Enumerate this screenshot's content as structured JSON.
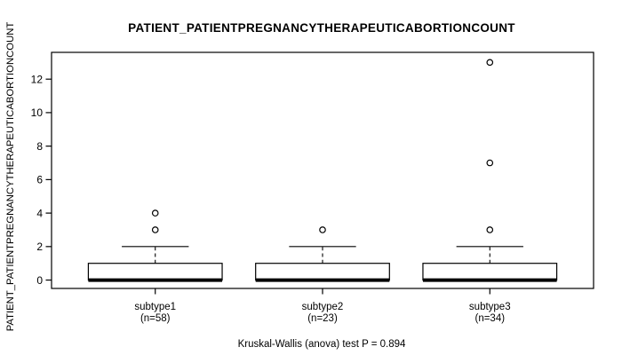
{
  "chart_data": {
    "type": "boxplot",
    "title": "PATIENT_PATIENTPREGNANCYTHERAPEUTICABORTIONCOUNT",
    "ylabel": "PATIENT_PATIENTPREGNANCYTHERAPEUTICABORTIONCOUNT",
    "xlabel": "",
    "ylim": [
      -0.5,
      13.6
    ],
    "yticks": [
      0,
      2,
      4,
      6,
      8,
      10,
      12
    ],
    "grid": false,
    "legend": "none",
    "groups": [
      {
        "label": "subtype1",
        "n_label": "(n=58)",
        "n": 58,
        "q1": 0,
        "median": 0,
        "q3": 1,
        "whisker_low": 0,
        "whisker_high": 2,
        "outliers": [
          3,
          4
        ]
      },
      {
        "label": "subtype2",
        "n_label": "(n=23)",
        "n": 23,
        "q1": 0,
        "median": 0,
        "q3": 1,
        "whisker_low": 0,
        "whisker_high": 2,
        "outliers": [
          3
        ]
      },
      {
        "label": "subtype3",
        "n_label": "(n=34)",
        "n": 34,
        "q1": 0,
        "median": 0,
        "q3": 1,
        "whisker_low": 0,
        "whisker_high": 2,
        "outliers": [
          3,
          7,
          13
        ]
      }
    ],
    "stat_test": "Kruskal-Wallis (anova) test P = 0.894",
    "p_value": 0.894,
    "colors": {
      "line": "#000000",
      "box_fill": "#ffffff",
      "background": "#ffffff",
      "text": "#000000"
    }
  }
}
